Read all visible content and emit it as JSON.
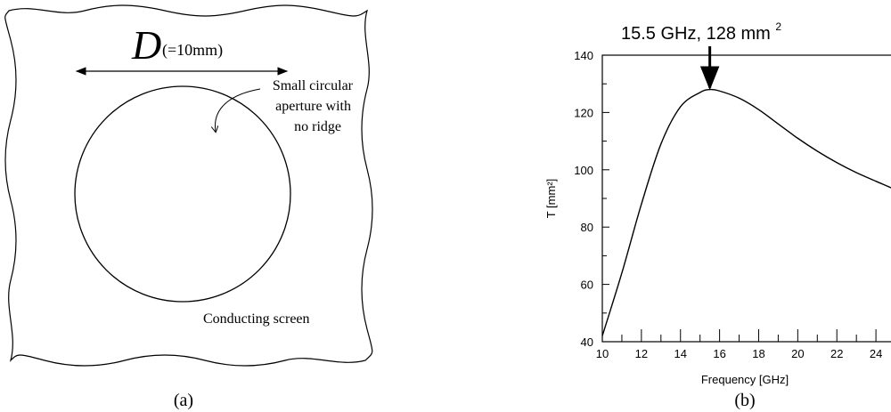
{
  "panel_a": {
    "dimension_symbol": "D",
    "dimension_value": "(=10mm)",
    "aperture_label": [
      "Small circular",
      "aperture with",
      "no ridge"
    ],
    "screen_label": "Conducting screen",
    "caption": "(a)"
  },
  "panel_b": {
    "caption": "(b)",
    "peak_annotation": {
      "text": "15.5 GHz, 128 mm",
      "superscript": "2",
      "x": 15.5,
      "y": 128
    }
  },
  "chart_data": {
    "type": "line",
    "title": "",
    "xlabel": "Frequency [GHz]",
    "ylabel": "T [mm²]",
    "xlim": [
      10,
      25.5
    ],
    "ylim": [
      40,
      140
    ],
    "x_ticks": [
      "10",
      "12",
      "14",
      "16",
      "18",
      "20",
      "22",
      "24"
    ],
    "y_ticks": [
      "40",
      "60",
      "80",
      "100",
      "120",
      "140"
    ],
    "grid": false,
    "series": [
      {
        "x": [
          10,
          11,
          12,
          13,
          14,
          15,
          15.5,
          16,
          17,
          18,
          19,
          20,
          21,
          22,
          23,
          24,
          25,
          25.5
        ],
        "y": [
          42,
          64,
          88,
          109,
          122,
          127,
          128,
          127.5,
          125,
          121,
          116,
          111,
          106.5,
          102.5,
          99,
          96,
          93,
          91
        ]
      }
    ]
  }
}
